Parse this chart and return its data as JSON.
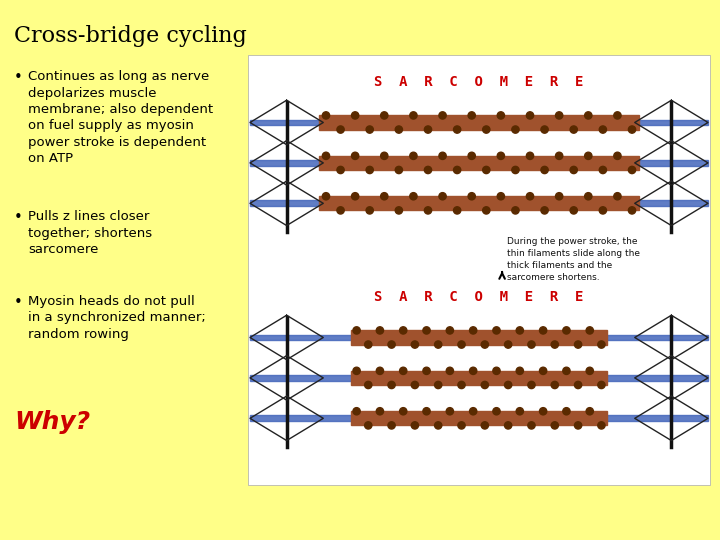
{
  "background_color": "#FFFF88",
  "title": "Cross-bridge cycling",
  "title_fontsize": 16,
  "title_color": "#000000",
  "bullets": [
    "Continues as long as nerve\ndepolarizes muscle\nmembrane; also dependent\non fuel supply as myosin\npower stroke is dependent\non ATP",
    "Pulls z lines closer\ntogether; shortens\nsarcomere",
    "Myosin heads do not pull\nin a synchronized manner;\nrandom rowing"
  ],
  "bullet_fontsize": 9.5,
  "bullet_color": "#000000",
  "why_text": "Why?",
  "why_fontsize": 18,
  "why_color": "#CC0000",
  "image_bg": "#FFFFFF",
  "sarc_label_color": "#CC0000",
  "thick_color": "#A0522D",
  "thick_dark": "#5a2a00",
  "thin_color": "#4466BB",
  "zline_color": "#111111",
  "hex_color": "#222222",
  "ann_text": "During the power stroke, the\nthin filaments slide along the\nthick filaments and the\nsarcomere shortens.",
  "ann_color": "#111111",
  "ann_fontsize": 6.5
}
